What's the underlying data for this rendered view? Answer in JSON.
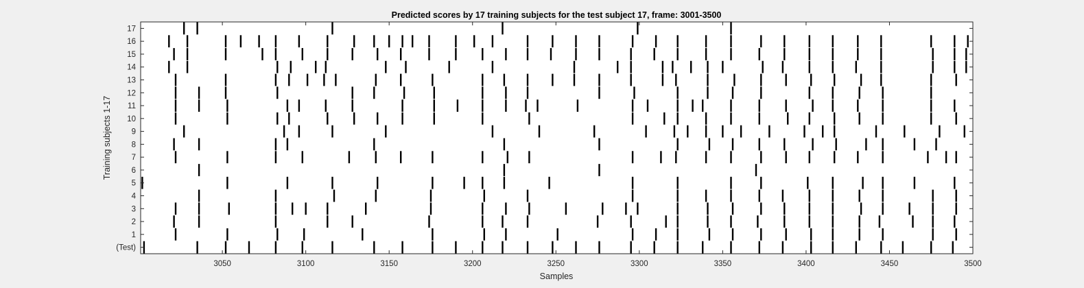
{
  "chart_data": {
    "type": "raster",
    "title": "Predicted scores by 17 training subjects for the test subject 17, frame: 3001-3500",
    "xlabel": "Samples",
    "ylabel": "Training subjects 1-17",
    "xlim": [
      3001,
      3500
    ],
    "xticks": [
      3050,
      3100,
      3150,
      3200,
      3250,
      3300,
      3350,
      3400,
      3450,
      3500
    ],
    "row_labels": [
      "(Test)",
      "1",
      "2",
      "3",
      "4",
      "5",
      "6",
      "7",
      "8",
      "9",
      "10",
      "11",
      "12",
      "13",
      "14",
      "15",
      "16",
      "17"
    ],
    "grid": false,
    "series": [
      {
        "label": "(Test)",
        "events": [
          3003,
          3035,
          3052,
          3066,
          3082,
          3098,
          3116,
          3141,
          3158,
          3176,
          3190,
          3206,
          3218,
          3233,
          3248,
          3262,
          3276,
          3295,
          3309,
          3323,
          3338,
          3355,
          3372,
          3386,
          3403,
          3416,
          3430,
          3445,
          3458,
          3475,
          3488
        ]
      },
      {
        "label": "1",
        "events": [
          3022,
          3053,
          3083,
          3099,
          3134,
          3176,
          3207,
          3220,
          3251,
          3296,
          3310,
          3323,
          3342,
          3356,
          3373,
          3388,
          3403,
          3416,
          3432,
          3446,
          3476,
          3490
        ]
      },
      {
        "label": "2",
        "events": [
          3021,
          3036,
          3082,
          3113,
          3128,
          3174,
          3206,
          3218,
          3233,
          3275,
          3295,
          3316,
          3323,
          3341,
          3355,
          3371,
          3387,
          3402,
          3416,
          3432,
          3444,
          3464,
          3476,
          3489
        ]
      },
      {
        "label": "3",
        "events": [
          3022,
          3036,
          3054,
          3082,
          3092,
          3100,
          3113,
          3136,
          3175,
          3206,
          3220,
          3234,
          3256,
          3278,
          3292,
          3299,
          3323,
          3341,
          3356,
          3373,
          3387,
          3402,
          3416,
          3433,
          3446,
          3462,
          3476,
          3490
        ]
      },
      {
        "label": "4",
        "events": [
          3036,
          3082,
          3117,
          3142,
          3175,
          3207,
          3233,
          3296,
          3323,
          3340,
          3355,
          3372,
          3386,
          3402,
          3416,
          3432,
          3446,
          3476,
          3490
        ]
      },
      {
        "label": "5",
        "events": [
          3002,
          3053,
          3089,
          3116,
          3143,
          3176,
          3195,
          3206,
          3219,
          3246,
          3296,
          3323,
          3355,
          3373,
          3401,
          3416,
          3434,
          3446,
          3465,
          3489
        ]
      },
      {
        "label": "6",
        "events": [
          3036,
          3219,
          3276,
          3370
        ]
      },
      {
        "label": "7",
        "events": [
          3022,
          3053,
          3082,
          3098,
          3126,
          3142,
          3157,
          3176,
          3206,
          3221,
          3234,
          3296,
          3313,
          3322,
          3340,
          3355,
          3373,
          3388,
          3402,
          3417,
          3431,
          3446,
          3473,
          3484,
          3490
        ]
      },
      {
        "label": "8",
        "events": [
          3021,
          3036,
          3082,
          3089,
          3141,
          3219,
          3276,
          3323,
          3342,
          3356,
          3372,
          3387,
          3404,
          3418,
          3436,
          3446,
          3465,
          3478
        ]
      },
      {
        "label": "9",
        "events": [
          3027,
          3087,
          3096,
          3116,
          3148,
          3212,
          3240,
          3273,
          3304,
          3321,
          3329,
          3340,
          3350,
          3361,
          3378,
          3399,
          3410,
          3417,
          3442,
          3459,
          3480,
          3495
        ]
      },
      {
        "label": "10",
        "events": [
          3022,
          3053,
          3083,
          3090,
          3113,
          3129,
          3143,
          3158,
          3177,
          3206,
          3234,
          3296,
          3315,
          3323,
          3340,
          3355,
          3372,
          3389,
          3402,
          3417,
          3432,
          3446,
          3475,
          3490
        ]
      },
      {
        "label": "11",
        "events": [
          3022,
          3036,
          3053,
          3089,
          3096,
          3112,
          3128,
          3158,
          3177,
          3191,
          3206,
          3220,
          3232,
          3239,
          3263,
          3296,
          3305,
          3323,
          3332,
          3338,
          3355,
          3372,
          3388,
          3404,
          3416,
          3431,
          3446,
          3475,
          3489
        ]
      },
      {
        "label": "12",
        "events": [
          3022,
          3036,
          3052,
          3083,
          3128,
          3141,
          3159,
          3177,
          3206,
          3220,
          3233,
          3276,
          3297,
          3323,
          3341,
          3356,
          3373,
          3402,
          3416,
          3432,
          3446,
          3475
        ]
      },
      {
        "label": "13",
        "events": [
          3022,
          3052,
          3082,
          3090,
          3101,
          3111,
          3118,
          3142,
          3157,
          3176,
          3206,
          3219,
          3233,
          3248,
          3261,
          3276,
          3295,
          3314,
          3322,
          3341,
          3357,
          3373,
          3388,
          3403,
          3417,
          3433,
          3445,
          3475,
          3490
        ]
      },
      {
        "label": "14",
        "events": [
          3018,
          3029,
          3083,
          3091,
          3106,
          3112,
          3148,
          3160,
          3186,
          3212,
          3261,
          3287,
          3295,
          3314,
          3320,
          3331,
          3341,
          3350,
          3374,
          3386,
          3402,
          3416,
          3430,
          3445,
          3476,
          3489,
          3496
        ]
      },
      {
        "label": "15",
        "events": [
          3021,
          3029,
          3052,
          3074,
          3082,
          3098,
          3113,
          3128,
          3143,
          3157,
          3174,
          3190,
          3206,
          3220,
          3233,
          3247,
          3262,
          3276,
          3295,
          3309,
          3323,
          3340,
          3355,
          3372,
          3387,
          3402,
          3416,
          3431,
          3445,
          3476,
          3489,
          3496
        ]
      },
      {
        "label": "16",
        "events": [
          3018,
          3029,
          3052,
          3061,
          3072,
          3082,
          3096,
          3113,
          3129,
          3141,
          3150,
          3158,
          3164,
          3174,
          3190,
          3201,
          3212,
          3233,
          3248,
          3262,
          3276,
          3296,
          3310,
          3323,
          3340,
          3355,
          3373,
          3387,
          3402,
          3416,
          3431,
          3445,
          3475,
          3489,
          3497
        ]
      },
      {
        "label": "17",
        "events": [
          3027,
          3035,
          3116,
          3218,
          3299,
          3355
        ]
      }
    ]
  }
}
